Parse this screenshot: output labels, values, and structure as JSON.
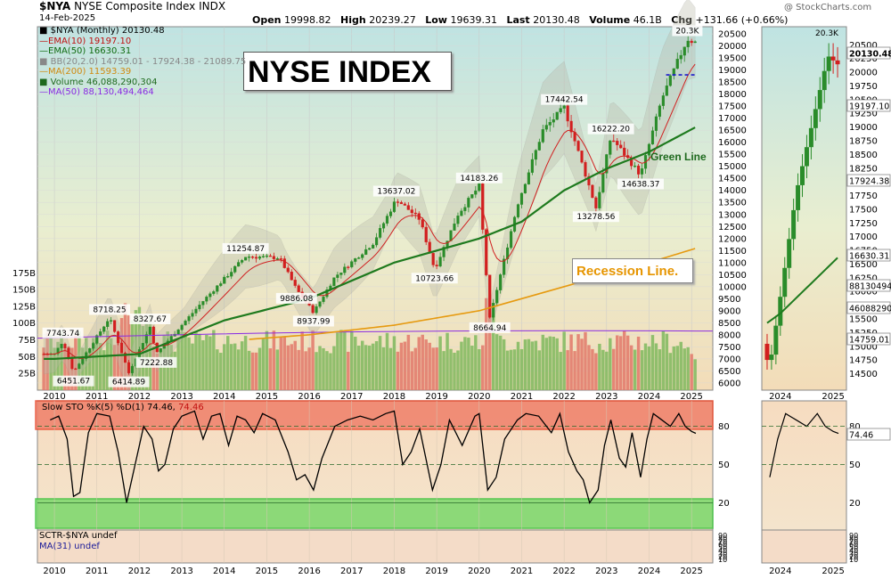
{
  "header": {
    "symbol": "$NYA",
    "name": "NYSE Composite Index",
    "exchange": "INDX",
    "date": "14-Feb-2025",
    "watermark": "@ StockCharts.com",
    "open_label": "Open",
    "open": "19998.82",
    "high_label": "High",
    "high": "20239.27",
    "low_label": "Low",
    "low": "19639.31",
    "last_label": "Last",
    "last": "20130.48",
    "volume_label": "Volume",
    "volume": "46.1B",
    "chg_label": "Chg",
    "chg": "+131.66 (+0.66%)"
  },
  "annotations": {
    "title_box": "NYSE INDEX",
    "green_line": "Green Line",
    "recession_line": "Recession Line."
  },
  "legend": {
    "price": "■ $NYA (Monthly) 20130.48",
    "ema10": "—EMA(10) 19197.10",
    "ema50": "—EMA(50) 16630.31",
    "bb": "■ BB(20,2.0) 14759.01 - 17924.38 - 21089.75",
    "ma200": "—MA(200) 11593.39",
    "volume": "■ Volume 46,088,290,304",
    "ma50vol": "—MA(50) 88,130,494,464"
  },
  "stoch_panel": {
    "label_main": "Slow STO %K(5) %D(1) 74.46,",
    "label_val": "74.46",
    "ticks": [
      "80",
      "50",
      "20"
    ],
    "current": "74.46"
  },
  "sctr_panel": {
    "label_main": "SCTR-$NYA undef",
    "label_ma": "MA(31) undef",
    "ticks": [
      "90",
      "80",
      "70",
      "60",
      "50",
      "40",
      "30",
      "20",
      "10"
    ]
  },
  "side_tags": {
    "last": "20130.48",
    "ema10": "19197.10",
    "bb_mid": "17924.38",
    "ema50": "16630.31",
    "vol_ma": "88130494",
    "vol": "46088290",
    "bb_low": "14759.01",
    "peak": "20.3K"
  },
  "colors": {
    "up": "#2a8c2a",
    "down": "#d21f1f",
    "ema10": "#d02020",
    "ema50": "#1e7a1e",
    "ma200": "#e69a10",
    "vol_ma": "#8a2be2",
    "ob_zone": "#f0806a",
    "os_zone": "#7bd86a",
    "dashed_level": "#1a1acc"
  },
  "chart_data": [
    {
      "type": "candlestick",
      "title": "NYSE INDEX",
      "period": "monthly",
      "x_label_years": [
        "2010",
        "2011",
        "2012",
        "2013",
        "2014",
        "2015",
        "2016",
        "2017",
        "2018",
        "2019",
        "2020",
        "2021",
        "2022",
        "2023",
        "2024",
        "2025"
      ],
      "y_ticks": [
        "20500",
        "20000",
        "19500",
        "19000",
        "18500",
        "18000",
        "17500",
        "17000",
        "16500",
        "16000",
        "15500",
        "15000",
        "14500",
        "14000",
        "13500",
        "13000",
        "12500",
        "12000",
        "11500",
        "11000",
        "10500",
        "10000",
        "9500",
        "9000",
        "8500",
        "8000",
        "7500",
        "7000",
        "6500",
        "6000"
      ],
      "ylim": [
        5700,
        20800
      ],
      "anchors": [
        {
          "date": 2010.0,
          "value": 7200
        },
        {
          "date": 2010.2,
          "value": 7743.74
        },
        {
          "date": 2010.45,
          "value": 6451.67
        },
        {
          "date": 2011.3,
          "value": 8718.25
        },
        {
          "date": 2011.75,
          "value": 6414.89
        },
        {
          "date": 2012.25,
          "value": 8327.67
        },
        {
          "date": 2012.4,
          "value": 7222.88
        },
        {
          "date": 2013.5,
          "value": 9400
        },
        {
          "date": 2014.5,
          "value": 11254.87
        },
        {
          "date": 2015.3,
          "value": 11200
        },
        {
          "date": 2015.7,
          "value": 9886.08
        },
        {
          "date": 2016.1,
          "value": 8937.99
        },
        {
          "date": 2016.6,
          "value": 10400
        },
        {
          "date": 2017.5,
          "value": 11800
        },
        {
          "date": 2018.05,
          "value": 13637.02
        },
        {
          "date": 2018.6,
          "value": 12800
        },
        {
          "date": 2018.95,
          "value": 10723.66
        },
        {
          "date": 2019.5,
          "value": 13000
        },
        {
          "date": 2020.0,
          "value": 14183.26
        },
        {
          "date": 2020.25,
          "value": 8664.94
        },
        {
          "date": 2020.9,
          "value": 13400
        },
        {
          "date": 2021.5,
          "value": 16500
        },
        {
          "date": 2022.0,
          "value": 17442.54
        },
        {
          "date": 2022.75,
          "value": 13278.56
        },
        {
          "date": 2023.1,
          "value": 16222.2
        },
        {
          "date": 2023.8,
          "value": 14638.37
        },
        {
          "date": 2024.3,
          "value": 17800
        },
        {
          "date": 2024.9,
          "value": 20300
        },
        {
          "date": 2025.1,
          "value": 20130.48
        }
      ],
      "labelled_points": [
        {
          "label": "7743.74",
          "date": 2010.2,
          "value": 7743.74,
          "pos": "above"
        },
        {
          "label": "6451.67",
          "date": 2010.45,
          "value": 6451.67,
          "pos": "below"
        },
        {
          "label": "8718.25",
          "date": 2011.3,
          "value": 8718.25,
          "pos": "above"
        },
        {
          "label": "6414.89",
          "date": 2011.75,
          "value": 6414.89,
          "pos": "below"
        },
        {
          "label": "8327.67",
          "date": 2012.25,
          "value": 8327.67,
          "pos": "above"
        },
        {
          "label": "7222.88",
          "date": 2012.4,
          "value": 7222.88,
          "pos": "below"
        },
        {
          "label": "11254.87",
          "date": 2014.5,
          "value": 11254.87,
          "pos": "above"
        },
        {
          "label": "9886.08",
          "date": 2015.7,
          "value": 9886.08,
          "pos": "below"
        },
        {
          "label": "8937.99",
          "date": 2016.1,
          "value": 8937.99,
          "pos": "below"
        },
        {
          "label": "13637.02",
          "date": 2018.05,
          "value": 13637.02,
          "pos": "above"
        },
        {
          "label": "10723.66",
          "date": 2018.95,
          "value": 10723.66,
          "pos": "below"
        },
        {
          "label": "14183.26",
          "date": 2020.0,
          "value": 14183.26,
          "pos": "above"
        },
        {
          "label": "8664.94",
          "date": 2020.25,
          "value": 8664.94,
          "pos": "below"
        },
        {
          "label": "17442.54",
          "date": 2022.0,
          "value": 17442.54,
          "pos": "above"
        },
        {
          "label": "13278.56",
          "date": 2022.75,
          "value": 13278.56,
          "pos": "below"
        },
        {
          "label": "16222.20",
          "date": 2023.1,
          "value": 16222.2,
          "pos": "above"
        },
        {
          "label": "14638.37",
          "date": 2023.8,
          "value": 14638.37,
          "pos": "below"
        },
        {
          "label": "20.3K",
          "date": 2024.9,
          "value": 20300,
          "pos": "above"
        }
      ],
      "ema50": [
        [
          2010,
          7000
        ],
        [
          2012,
          7200
        ],
        [
          2014,
          8600
        ],
        [
          2016,
          9500
        ],
        [
          2018,
          11000
        ],
        [
          2020,
          12000
        ],
        [
          2021,
          12700
        ],
        [
          2022,
          14000
        ],
        [
          2023,
          14900
        ],
        [
          2024,
          15600
        ],
        [
          2025.1,
          16630.31
        ]
      ],
      "ma200": [
        [
          2014.5,
          7800
        ],
        [
          2016,
          8000
        ],
        [
          2018,
          8400
        ],
        [
          2020,
          9000
        ],
        [
          2022,
          10000
        ],
        [
          2024,
          11000
        ],
        [
          2025.1,
          11593.39
        ]
      ],
      "dashed_level": {
        "value": 18800,
        "from": 2024.4,
        "to": 2025.0
      },
      "volume_y_ticks": [
        "175B",
        "150B",
        "125B",
        "100B",
        "75B",
        "50B",
        "25B"
      ],
      "volume_ylim": [
        0,
        190
      ],
      "volume_ma50_value": 88.13,
      "volume_last": 46.09
    },
    {
      "type": "line",
      "title": "Slow STO %K(5) %D(1)",
      "ylim": [
        0,
        100
      ],
      "zones": {
        "overbought": 80,
        "midline": 50,
        "oversold": 20
      },
      "points": [
        [
          2009.9,
          85
        ],
        [
          2010.1,
          88
        ],
        [
          2010.3,
          70
        ],
        [
          2010.45,
          25
        ],
        [
          2010.6,
          28
        ],
        [
          2010.8,
          75
        ],
        [
          2011.0,
          90
        ],
        [
          2011.3,
          88
        ],
        [
          2011.5,
          60
        ],
        [
          2011.7,
          20
        ],
        [
          2011.9,
          50
        ],
        [
          2012.1,
          80
        ],
        [
          2012.3,
          70
        ],
        [
          2012.45,
          45
        ],
        [
          2012.6,
          50
        ],
        [
          2012.8,
          78
        ],
        [
          2013.0,
          88
        ],
        [
          2013.3,
          92
        ],
        [
          2013.5,
          70
        ],
        [
          2013.7,
          88
        ],
        [
          2013.9,
          90
        ],
        [
          2014.1,
          65
        ],
        [
          2014.3,
          88
        ],
        [
          2014.5,
          85
        ],
        [
          2014.7,
          75
        ],
        [
          2014.9,
          90
        ],
        [
          2015.2,
          85
        ],
        [
          2015.5,
          60
        ],
        [
          2015.7,
          38
        ],
        [
          2015.9,
          42
        ],
        [
          2016.1,
          30
        ],
        [
          2016.3,
          55
        ],
        [
          2016.6,
          80
        ],
        [
          2016.9,
          85
        ],
        [
          2017.2,
          88
        ],
        [
          2017.5,
          85
        ],
        [
          2017.8,
          90
        ],
        [
          2018.0,
          92
        ],
        [
          2018.2,
          50
        ],
        [
          2018.4,
          60
        ],
        [
          2018.6,
          78
        ],
        [
          2018.9,
          30
        ],
        [
          2019.1,
          50
        ],
        [
          2019.3,
          85
        ],
        [
          2019.6,
          65
        ],
        [
          2019.9,
          88
        ],
        [
          2020.0,
          90
        ],
        [
          2020.2,
          30
        ],
        [
          2020.4,
          40
        ],
        [
          2020.6,
          70
        ],
        [
          2020.9,
          85
        ],
        [
          2021.1,
          90
        ],
        [
          2021.4,
          88
        ],
        [
          2021.7,
          75
        ],
        [
          2021.9,
          90
        ],
        [
          2022.1,
          60
        ],
        [
          2022.3,
          45
        ],
        [
          2022.45,
          38
        ],
        [
          2022.6,
          20
        ],
        [
          2022.8,
          30
        ],
        [
          2022.95,
          65
        ],
        [
          2023.1,
          85
        ],
        [
          2023.3,
          55
        ],
        [
          2023.45,
          48
        ],
        [
          2023.6,
          75
        ],
        [
          2023.8,
          40
        ],
        [
          2023.95,
          70
        ],
        [
          2024.1,
          90
        ],
        [
          2024.3,
          85
        ],
        [
          2024.5,
          80
        ],
        [
          2024.7,
          90
        ],
        [
          2024.85,
          80
        ],
        [
          2025.0,
          76
        ],
        [
          2025.1,
          74.46
        ]
      ]
    }
  ]
}
